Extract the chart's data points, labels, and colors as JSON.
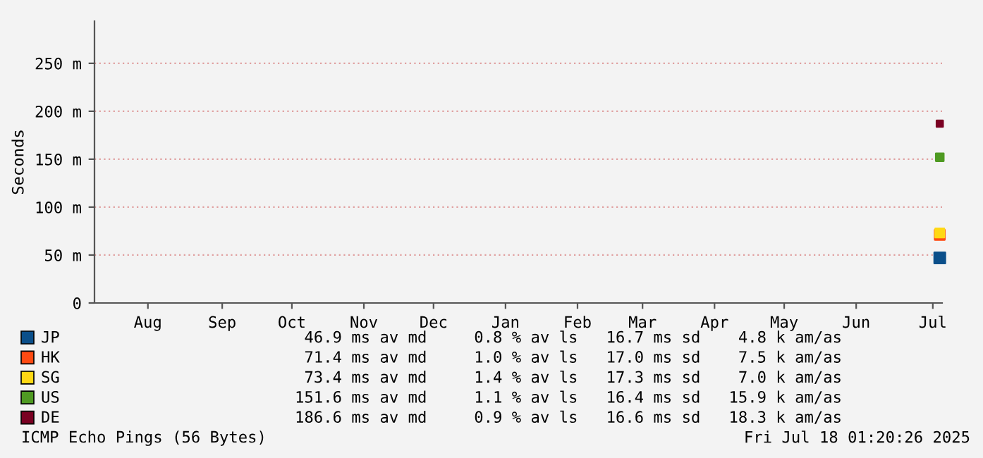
{
  "chart_data": {
    "type": "scatter",
    "marker": "square",
    "ylabel": "Seconds",
    "xlim": [
      "2024-07-18",
      "2025-07-18"
    ],
    "xticks": [
      {
        "value": "2024-08-10",
        "label": "Aug"
      },
      {
        "value": "2024-09-11",
        "label": "Sep"
      },
      {
        "value": "2024-10-11",
        "label": "Oct"
      },
      {
        "value": "2024-11-11",
        "label": "Nov"
      },
      {
        "value": "2024-12-11",
        "label": "Dec"
      },
      {
        "value": "2025-01-11",
        "label": "Jan"
      },
      {
        "value": "2025-02-11",
        "label": "Feb"
      },
      {
        "value": "2025-03-11",
        "label": "Mar"
      },
      {
        "value": "2025-04-11",
        "label": "Apr"
      },
      {
        "value": "2025-05-11",
        "label": "May"
      },
      {
        "value": "2025-06-11",
        "label": "Jun"
      },
      {
        "value": "2025-07-14",
        "label": "Jul"
      }
    ],
    "ylim": [
      0,
      294
    ],
    "yticks": [
      0,
      {
        "value": 50,
        "label": "50 m"
      },
      {
        "value": 100,
        "label": "100 m"
      },
      {
        "value": 150,
        "label": "150 m"
      },
      {
        "value": 200,
        "label": "200 m"
      },
      {
        "value": 250,
        "label": "250 m"
      }
    ],
    "grid": "y",
    "legend": "bottom",
    "series": [
      {
        "name": "JP",
        "color": "#0b4f8a",
        "x": [
          "2025-07-17"
        ],
        "values": [
          47
        ]
      },
      {
        "name": "HK",
        "color": "#ff4a12",
        "x": [
          "2025-07-17"
        ],
        "values": [
          71
        ]
      },
      {
        "name": "SG",
        "color": "#ffd814",
        "x": [
          "2025-07-17"
        ],
        "values": [
          73
        ]
      },
      {
        "name": "US",
        "color": "#4f9a22",
        "x": [
          "2025-07-17"
        ],
        "values": [
          152
        ]
      },
      {
        "name": "DE",
        "color": "#7a0022",
        "x": [
          "2025-07-17"
        ],
        "values": [
          187
        ]
      }
    ],
    "annotations": [
      "46.9 ms av md     0.8 % av ls   16.7 ms sd    4.8 k am/as",
      "71.4 ms av md     1.0 % av ls   17.0 ms sd    7.5 k am/as",
      "73.4 ms av md     1.4 % av ls   17.3 ms sd    7.0 k am/as",
      "151.6 ms av md     1.1 % av ls   16.4 ms sd   15.9 k am/as",
      "186.6 ms av md     0.9 % av ls   16.6 ms sd   18.3 k am/as",
      "ICMP Echo Pings (56 Bytes)",
      "Fri Jul 18 01:20:26 2025"
    ]
  }
}
